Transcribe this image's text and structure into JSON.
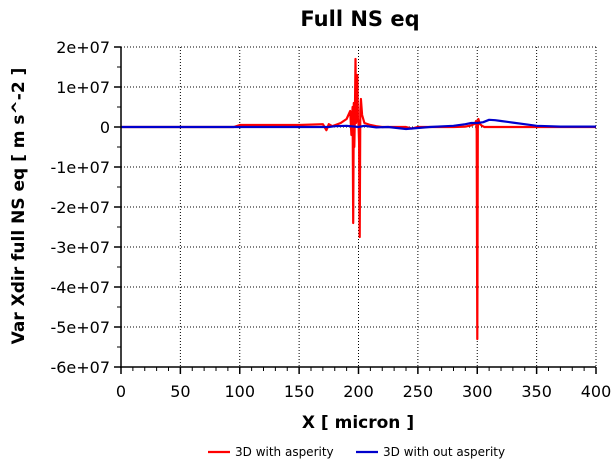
{
  "chart_data": {
    "type": "line",
    "title": "Full NS eq",
    "xlabel": "X [ micron ]",
    "ylabel": "Var Xdir full NS eq [ m s^-2 ]",
    "xlim": [
      0,
      400
    ],
    "ylim": [
      -60000000,
      20000000
    ],
    "x_ticks": [
      0,
      50,
      100,
      150,
      200,
      250,
      300,
      350,
      400
    ],
    "x_tick_labels": [
      "0",
      "50",
      "100",
      "150",
      "200",
      "250",
      "300",
      "350",
      "400"
    ],
    "y_ticks": [
      20000000,
      10000000,
      0,
      -10000000,
      -20000000,
      -30000000,
      -40000000,
      -50000000,
      -60000000
    ],
    "y_tick_labels": [
      "2e+07",
      "1e+07",
      "0",
      "-1e+07",
      "-2e+07",
      "-3e+07",
      "-4e+07",
      "-5e+07",
      "-6e+07"
    ],
    "grid": true,
    "legend_position": "bottom-center",
    "series": [
      {
        "name": "3D with asperity",
        "color": "#ff0000",
        "x": [
          0,
          95,
          100,
          150,
          170,
          173,
          175,
          178,
          185,
          190,
          193,
          194,
          195,
          195.5,
          196,
          196.5,
          197,
          197.5,
          198,
          198.5,
          199,
          199.5,
          200,
          200.5,
          201,
          201.5,
          202,
          203,
          205,
          210,
          215,
          220,
          240,
          245,
          250,
          260,
          280,
          290,
          295,
          298,
          299,
          299.5,
          300,
          300.5,
          301,
          302,
          304,
          306,
          310,
          320,
          350,
          400
        ],
        "values": [
          0,
          0,
          500000,
          500000,
          700000,
          -800000,
          700000,
          200000,
          1000000,
          2000000,
          4000000,
          -2000000,
          5000000,
          -24000000,
          6000000,
          -5000000,
          3000000,
          17000000,
          1000000,
          9000000,
          13000000,
          2000000,
          1000000,
          -4000000,
          -27500000,
          4000000,
          7000000,
          3000000,
          1000000,
          500000,
          200000,
          0,
          0,
          -400000,
          0,
          0,
          0,
          100000,
          400000,
          800000,
          1500000,
          -1000000,
          -53000000,
          0,
          2000000,
          800000,
          300000,
          0,
          0,
          0,
          0,
          0
        ]
      },
      {
        "name": "3D with out asperity",
        "color": "#0000cc",
        "x": [
          0,
          100,
          150,
          175,
          180,
          190,
          200,
          205,
          215,
          225,
          240,
          260,
          280,
          290,
          295,
          300,
          305,
          310,
          315,
          320,
          330,
          340,
          350,
          370,
          400
        ],
        "values": [
          0,
          0,
          0,
          0,
          200000,
          300000,
          0,
          300000,
          -100000,
          0,
          -500000,
          0,
          300000,
          700000,
          1000000,
          1000000,
          1200000,
          1800000,
          1700000,
          1500000,
          1100000,
          700000,
          300000,
          100000,
          100000
        ]
      }
    ]
  }
}
